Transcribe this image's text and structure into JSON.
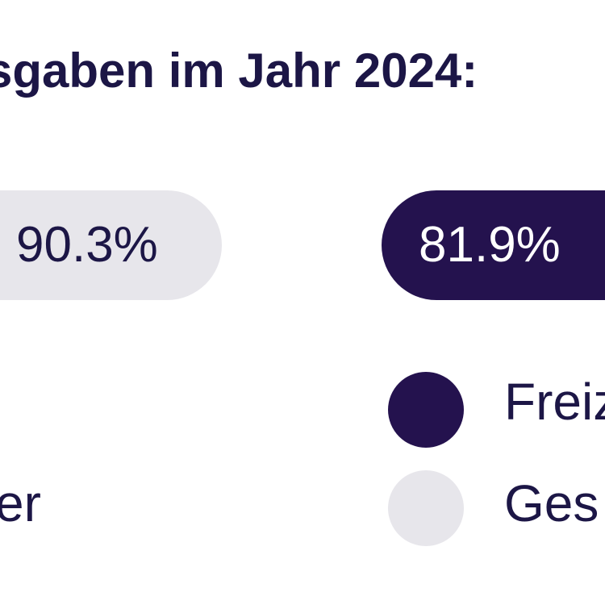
{
  "chart_data": {
    "type": "bar",
    "title": "sgaben im Jahr 2024:",
    "categories": [
      "Ges",
      "Freiz"
    ],
    "series": [
      {
        "name": "Ges",
        "color": "#e7e6eb",
        "value": 90.3,
        "label": "90.3%"
      },
      {
        "name": "Freiz",
        "color": "#24124e",
        "value": 81.9,
        "label": "81.9%"
      }
    ],
    "extra_legend_text": "er",
    "legend": [
      {
        "label": "Freiz",
        "color": "#24124e"
      },
      {
        "label": "Ges",
        "color": "#e7e6eb"
      }
    ],
    "unit": "%"
  }
}
